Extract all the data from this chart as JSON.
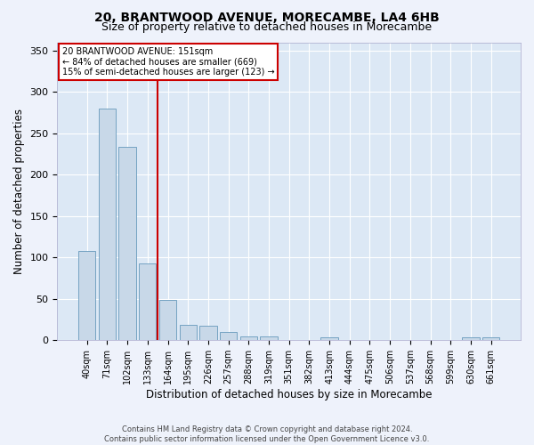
{
  "title": "20, BRANTWOOD AVENUE, MORECAMBE, LA4 6HB",
  "subtitle": "Size of property relative to detached houses in Morecambe",
  "xlabel": "Distribution of detached houses by size in Morecambe",
  "ylabel": "Number of detached properties",
  "categories": [
    "40sqm",
    "71sqm",
    "102sqm",
    "133sqm",
    "164sqm",
    "195sqm",
    "226sqm",
    "257sqm",
    "288sqm",
    "319sqm",
    "351sqm",
    "382sqm",
    "413sqm",
    "444sqm",
    "475sqm",
    "506sqm",
    "537sqm",
    "568sqm",
    "599sqm",
    "630sqm",
    "661sqm"
  ],
  "values": [
    108,
    280,
    234,
    93,
    49,
    18,
    17,
    10,
    5,
    5,
    0,
    0,
    3,
    0,
    0,
    0,
    0,
    0,
    0,
    3,
    3
  ],
  "bar_color": "#c8d8e8",
  "bar_edge_color": "#6699bb",
  "vline_x": 3.5,
  "vline_color": "#cc0000",
  "annotation_line1": "20 BRANTWOOD AVENUE: 151sqm",
  "annotation_line2": "← 84% of detached houses are smaller (669)",
  "annotation_line3": "15% of semi-detached houses are larger (123) →",
  "annotation_box_color": "#ffffff",
  "annotation_box_edge_color": "#cc0000",
  "ylim": [
    0,
    360
  ],
  "yticks": [
    0,
    50,
    100,
    150,
    200,
    250,
    300,
    350
  ],
  "title_fontsize": 10,
  "subtitle_fontsize": 9,
  "xlabel_fontsize": 8.5,
  "ylabel_fontsize": 8.5,
  "footer_line1": "Contains HM Land Registry data © Crown copyright and database right 2024.",
  "footer_line2": "Contains public sector information licensed under the Open Government Licence v3.0.",
  "background_color": "#eef2fb",
  "grid_color": "#ffffff",
  "axes_background": "#dce8f5"
}
